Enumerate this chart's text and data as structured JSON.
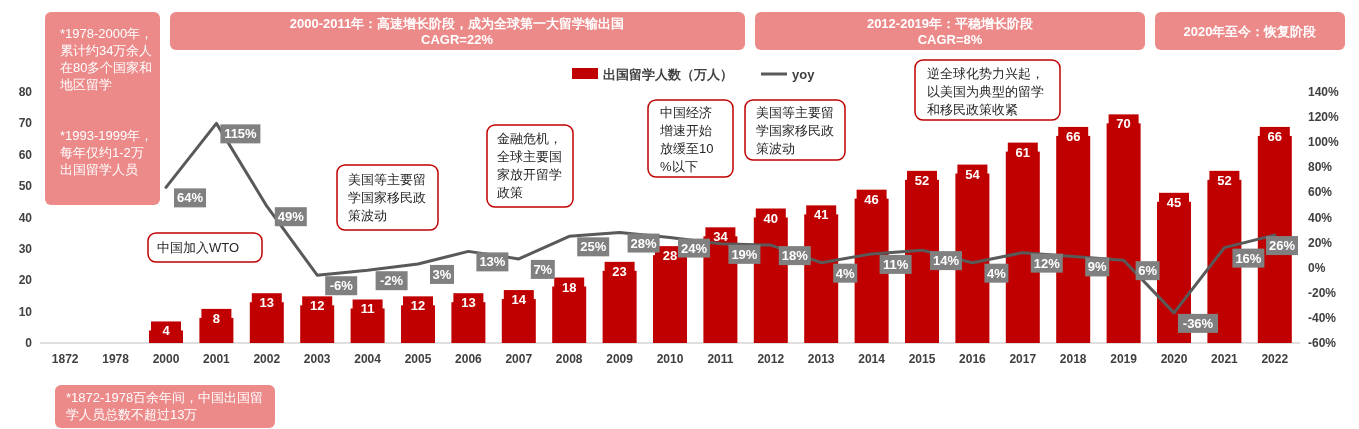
{
  "chart_data": {
    "type": "bar",
    "categories": [
      "1872",
      "1978",
      "2000",
      "2001",
      "2002",
      "2003",
      "2004",
      "2005",
      "2006",
      "2007",
      "2008",
      "2009",
      "2010",
      "2011",
      "2012",
      "2013",
      "2014",
      "2015",
      "2016",
      "2017",
      "2018",
      "2019",
      "2020",
      "2021",
      "2022"
    ],
    "series": [
      {
        "name": "出国留学人数（万人）",
        "color": "#c00000",
        "values": [
          null,
          null,
          4,
          8,
          13,
          12,
          11,
          12,
          13,
          14,
          18,
          23,
          28,
          34,
          40,
          41,
          46,
          52,
          54,
          61,
          66,
          70,
          45,
          52,
          66
        ]
      },
      {
        "name": "yoy",
        "type": "line",
        "axis": "y2",
        "color": "#595959",
        "values": [
          null,
          null,
          64,
          115,
          49,
          -6,
          -2,
          3,
          13,
          7,
          25,
          28,
          24,
          19,
          18,
          4,
          11,
          14,
          4,
          12,
          9,
          6,
          -36,
          16,
          26
        ],
        "value_labels": [
          null,
          null,
          "64%",
          "115%",
          "49%",
          "-6%",
          "-2%",
          "3%",
          "13%",
          "7%",
          "25%",
          "28%",
          "24%",
          "19%",
          "18%",
          "4%",
          "11%",
          "14%",
          "4%",
          "12%",
          "9%",
          "6%",
          "-36%",
          "16%",
          "26%"
        ]
      }
    ],
    "ylim": [
      0,
      80
    ],
    "yticks": [
      0,
      10,
      20,
      30,
      40,
      50,
      60,
      70,
      80
    ],
    "y2lim": [
      -60,
      140
    ],
    "y2ticks": [
      {
        "value": -60,
        "label": "-60%"
      },
      {
        "value": -40,
        "label": "-40%"
      },
      {
        "value": -20,
        "label": "-20%"
      },
      {
        "value": 0,
        "label": "0%"
      },
      {
        "value": 20,
        "label": "20%"
      },
      {
        "value": 40,
        "label": "40%"
      },
      {
        "value": 60,
        "label": "60%"
      },
      {
        "value": 80,
        "label": "80%"
      },
      {
        "value": 100,
        "label": "100%"
      },
      {
        "value": 120,
        "label": "120%"
      },
      {
        "value": 140,
        "label": "140%"
      }
    ],
    "data_labels": true,
    "legend": "top",
    "grid": false,
    "marker": "none",
    "annotations": [
      "2000-2011年：高速增长阶段，成为全球第一大留学输出国",
      "CAGR=22%",
      "2012-2019年：平稳增长阶段",
      "CAGR=8%",
      "2020年至今：恢复阶段",
      "*1978-2000年，累计约34万余人在80多个国家和地区留学",
      "*1993-1999年，每年仅约1-2万出国留学人员",
      "*1872-1978百余年间，中国出国留学人员总数不超过13万",
      "中国加入WTO",
      "美国等主要留学国家移民政策波动",
      "金融危机，全球主要国家放开留学政策",
      "中国经济增速开始放缓至10%以下",
      "美国等主要留学国家移民政策波动",
      "逆全球化势力兴起，以美国为典型的留学和移民政策收紧"
    ]
  }
}
